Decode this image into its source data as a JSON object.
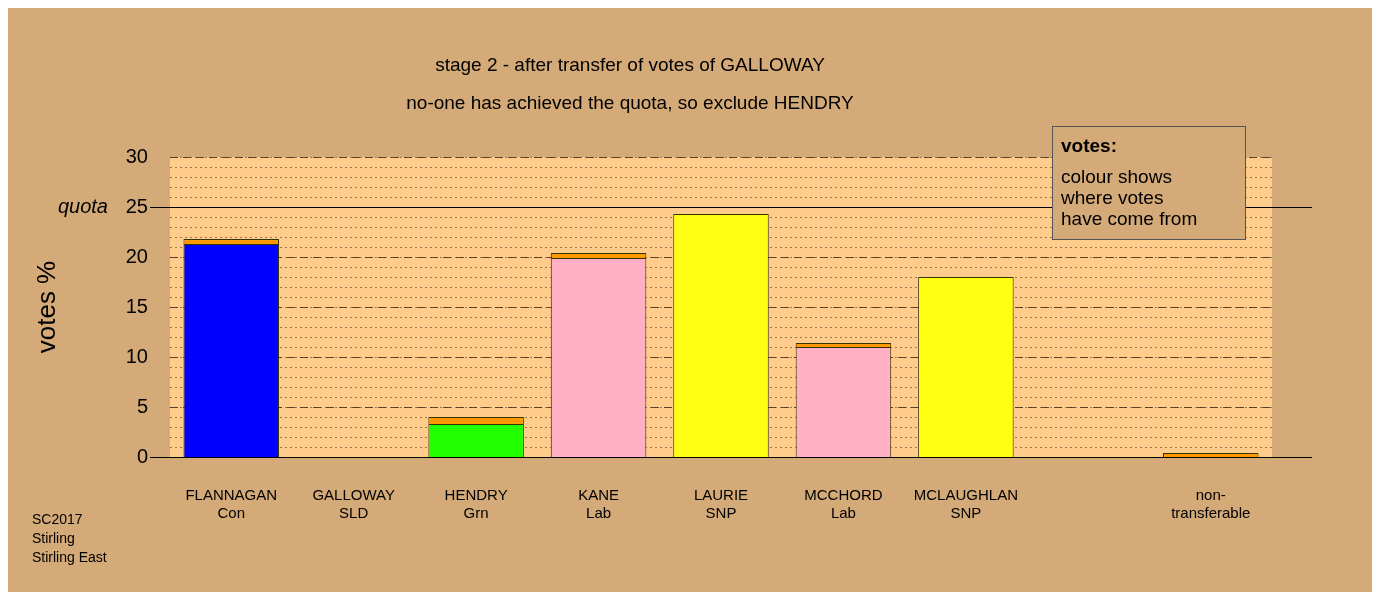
{
  "chart_data": {
    "type": "bar",
    "title": "stage 2 - after transfer of votes of GALLOWAY",
    "subtitle": "no-one has achieved the quota, so exclude HENDRY",
    "ylabel": "votes %",
    "legend_title": "votes:",
    "categories": [
      "FLANNAGAN\nCon",
      "GALLOWAY\nSLD",
      "HENDRY\nGrn",
      "KANE\nLab",
      "LAURIE\nSNP",
      "MCCHORD\nLab",
      "MCLAUGHLAN\nSNP",
      null,
      "non-\ntransferable"
    ],
    "stacked": true,
    "series": [
      {
        "colors": [
          "#0000ff",
          "#ffb0c4",
          "#22ff00",
          "#ffb0c4",
          "#ffff14",
          "#ffb0c4",
          "#ffff14",
          null,
          "#ff9900"
        ],
        "values": [
          21.3,
          0,
          3.3,
          19.9,
          24.3,
          11.0,
          18.0,
          null,
          0.4
        ]
      },
      {
        "color": "#ff9900",
        "values": [
          0.5,
          0,
          0.7,
          0.5,
          0,
          0.4,
          0,
          null,
          0
        ]
      }
    ],
    "ylim": [
      0,
      30
    ],
    "yticks": [
      0,
      5,
      10,
      15,
      20,
      25,
      30
    ],
    "grid": "y",
    "ref_lines": [
      {
        "axis": "y",
        "value": 25,
        "label": "quota"
      }
    ],
    "annotations": [
      "colour shows\nwhere votes\nhave come from",
      "SC2017\nStirling\nStirling East"
    ]
  }
}
